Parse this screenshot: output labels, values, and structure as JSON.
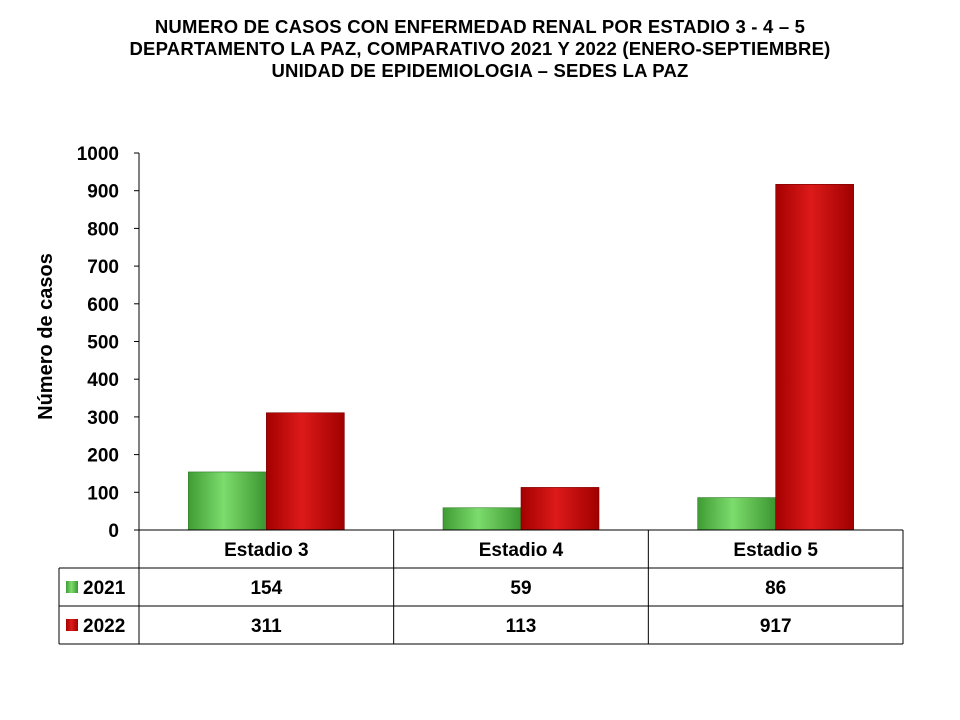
{
  "title": {
    "line1": "NUMERO DE CASOS CON ENFERMEDAD RENAL POR ESTADIO 3 - 4 – 5",
    "line2": "DEPARTAMENTO LA PAZ, COMPARATIVO 2021 Y 2022 (ENERO-SEPTIEMBRE)",
    "line3": "UNIDAD DE EPIDEMIOLOGIA – SEDES LA PAZ"
  },
  "chart_data": {
    "type": "bar",
    "title": "NUMERO DE CASOS CON ENFERMEDAD RENAL POR ESTADIO 3 - 4 – 5 DEPARTAMENTO LA PAZ, COMPARATIVO 2021 Y 2022 (ENERO-SEPTIEMBRE) UNIDAD DE EPIDEMIOLOGIA – SEDES LA PAZ",
    "xlabel": "",
    "ylabel": "Número de casos",
    "ylim": [
      0,
      1000
    ],
    "yticks": [
      "0",
      "100",
      "200",
      "300",
      "400",
      "500",
      "600",
      "700",
      "800",
      "900",
      "1000"
    ],
    "categories": [
      "Estadio 3",
      "Estadio 4",
      "Estadio 5"
    ],
    "series": [
      {
        "name": "2021",
        "values": [
          154,
          59,
          86
        ],
        "color": "#4caf3c"
      },
      {
        "name": "2022",
        "values": [
          311,
          113,
          917
        ],
        "color": "#c00000"
      }
    ],
    "legend": "data-table-left",
    "grid": false
  }
}
